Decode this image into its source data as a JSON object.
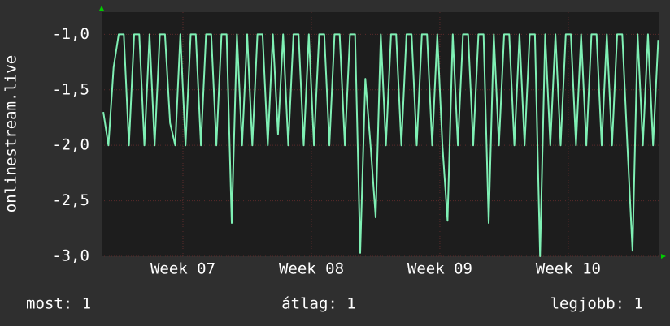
{
  "chart_data": {
    "type": "line",
    "y_label": "onlinestream.live",
    "x": [
      6.38,
      6.42,
      6.46,
      6.5,
      6.54,
      6.58,
      6.62,
      6.66,
      6.7,
      6.74,
      6.78,
      6.82,
      6.86,
      6.9,
      6.94,
      6.98,
      7.02,
      7.06,
      7.1,
      7.14,
      7.18,
      7.22,
      7.26,
      7.3,
      7.34,
      7.38,
      7.42,
      7.46,
      7.5,
      7.54,
      7.58,
      7.62,
      7.66,
      7.7,
      7.74,
      7.78,
      7.82,
      7.86,
      7.9,
      7.94,
      7.98,
      8.02,
      8.06,
      8.1,
      8.14,
      8.18,
      8.22,
      8.26,
      8.3,
      8.34,
      8.38,
      8.42,
      8.46,
      8.5,
      8.54,
      8.58,
      8.62,
      8.66,
      8.7,
      8.74,
      8.78,
      8.82,
      8.86,
      8.9,
      8.94,
      8.98,
      9.02,
      9.06,
      9.1,
      9.14,
      9.18,
      9.22,
      9.26,
      9.3,
      9.34,
      9.38,
      9.42,
      9.46,
      9.5,
      9.54,
      9.58,
      9.62,
      9.66,
      9.7,
      9.74,
      9.78,
      9.82,
      9.86,
      9.9,
      9.94,
      9.98,
      10.02,
      10.06,
      10.1,
      10.14,
      10.18,
      10.22,
      10.26,
      10.3,
      10.34,
      10.38,
      10.42,
      10.46,
      10.5,
      10.54,
      10.58,
      10.62,
      10.66,
      10.7
    ],
    "series": [
      {
        "name": "onlinestream.live",
        "color": "#7ff0b4",
        "values": [
          -1.7,
          -2,
          -1.3,
          -1,
          -1,
          -2,
          -1,
          -1,
          -2,
          -1,
          -2,
          -1,
          -1,
          -1.8,
          -2,
          -1,
          -2,
          -1,
          -1,
          -2,
          -1,
          -1,
          -2,
          -1,
          -1,
          -2.7,
          -1,
          -2,
          -1,
          -2,
          -1,
          -1,
          -2,
          -1,
          -1.9,
          -1,
          -2,
          -1,
          -1,
          -2,
          -1,
          -2,
          -1,
          -1,
          -2,
          -1,
          -1,
          -2,
          -1,
          -1,
          -2.97,
          -1.4,
          -2,
          -2.65,
          -1,
          -2,
          -1,
          -1,
          -2,
          -1,
          -1,
          -2,
          -1,
          -1,
          -2,
          -1,
          -2,
          -2.68,
          -1,
          -2,
          -1,
          -1,
          -2,
          -1,
          -1,
          -2.7,
          -1,
          -2,
          -1,
          -1,
          -2,
          -1,
          -2,
          -1,
          -1,
          -3,
          -1,
          -2,
          -1,
          -2,
          -1,
          -1,
          -2,
          -1,
          -2,
          -1,
          -1,
          -2,
          -1,
          -2,
          -1,
          -1,
          -2,
          -2.95,
          -1,
          -2,
          -1,
          -2,
          -1.05
        ]
      }
    ],
    "xlim": [
      6.367,
      10.703
    ],
    "xticks": [
      {
        "value": 7,
        "label": "Week 07"
      },
      {
        "value": 8,
        "label": "Week 08"
      },
      {
        "value": 9,
        "label": "Week 09"
      },
      {
        "value": 10,
        "label": "Week 10"
      }
    ],
    "ylim": [
      -3,
      -0.8
    ],
    "yticks": [
      {
        "value": -3,
        "label": "-3,0"
      },
      {
        "value": -2.5,
        "label": "-2,5"
      },
      {
        "value": -2,
        "label": "-2,0"
      },
      {
        "value": -1.5,
        "label": "-1,5"
      },
      {
        "value": -1,
        "label": "-1,0"
      }
    ],
    "grid": true,
    "stats": [
      "most: 1",
      "átlag: 1",
      "legjobb: 1"
    ]
  }
}
